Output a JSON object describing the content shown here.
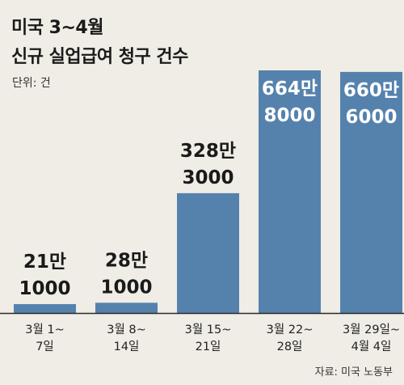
{
  "title": [
    "미국 3~4월",
    "신규 실업급여 청구 건수"
  ],
  "unit_label": "단위: 건",
  "source": "자료: 미국 노동부",
  "colors": {
    "bar": "#5582ad",
    "background": "#f0ede6",
    "text": "#1a1a1a",
    "axis": "#2a2a2a"
  },
  "chart_data": {
    "type": "bar",
    "title": "미국 3~4월 신규 실업급여 청구 건수",
    "ylabel": "단위: 건",
    "categories": [
      [
        "3월 1~",
        "7일"
      ],
      [
        "3월 8~",
        "14일"
      ],
      [
        "3월 15~",
        "21일"
      ],
      [
        "3월 22~",
        "28일"
      ],
      [
        "3월 29일~",
        "4월 4일"
      ]
    ],
    "values": [
      211000,
      281000,
      3283000,
      6648000,
      6606000
    ],
    "value_labels": [
      [
        "21만",
        "1000"
      ],
      [
        "28만",
        "1000"
      ],
      [
        "328만",
        "3000"
      ],
      [
        "664만",
        "8000"
      ],
      [
        "660만",
        "6000"
      ]
    ],
    "ylim": [
      0,
      6648000
    ],
    "grid": false,
    "legend": "none"
  }
}
